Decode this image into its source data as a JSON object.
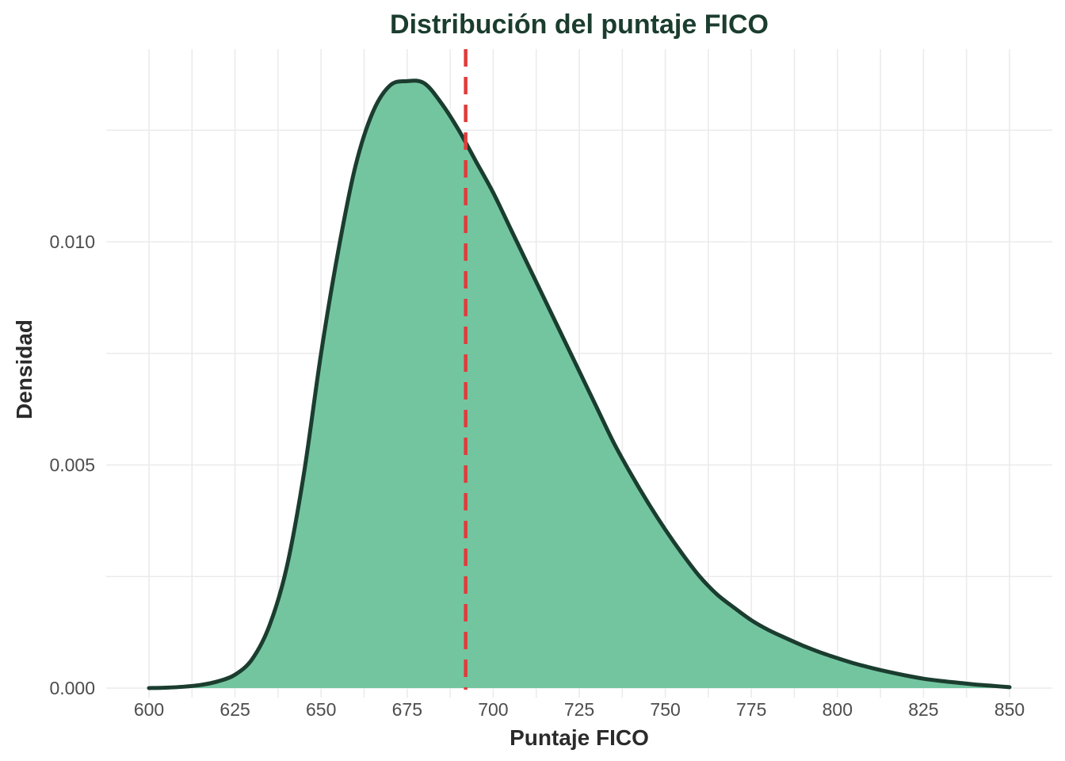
{
  "chart_data": {
    "type": "area",
    "title": "Distribución del puntaje FICO",
    "xlabel": "Puntaje FICO",
    "ylabel": "Densidad",
    "xlim": [
      600,
      850
    ],
    "ylim": [
      0,
      0.0137
    ],
    "x_ticks": [
      600,
      625,
      650,
      675,
      700,
      725,
      750,
      775,
      800,
      825,
      850
    ],
    "x_tick_labels": [
      "600",
      "625",
      "650",
      "675",
      "700",
      "725",
      "750",
      "775",
      "800",
      "825",
      "850"
    ],
    "y_ticks": [
      0,
      0.005,
      0.01
    ],
    "y_tick_labels": [
      "0.000",
      "0.005",
      "0.010"
    ],
    "grid": true,
    "series": [
      {
        "x": [
          600,
          605,
          610,
          615,
          620,
          625,
          630,
          635,
          640,
          645,
          650,
          655,
          660,
          665,
          670,
          675,
          680,
          685,
          690,
          695,
          700,
          705,
          710,
          715,
          720,
          725,
          730,
          735,
          740,
          745,
          750,
          755,
          760,
          765,
          770,
          775,
          780,
          785,
          790,
          795,
          800,
          805,
          810,
          815,
          820,
          825,
          830,
          835,
          840,
          845,
          850
        ],
        "y": [
          0.0,
          1e-05,
          3e-05,
          7e-05,
          0.00015,
          0.0003,
          0.00065,
          0.0014,
          0.0027,
          0.0048,
          0.0075,
          0.0098,
          0.0117,
          0.0129,
          0.0135,
          0.0136,
          0.01355,
          0.0131,
          0.0125,
          0.0118,
          0.0111,
          0.0103,
          0.0095,
          0.0087,
          0.0079,
          0.0071,
          0.0063,
          0.0055,
          0.0048,
          0.00415,
          0.00355,
          0.003,
          0.0025,
          0.0021,
          0.0018,
          0.00152,
          0.0013,
          0.00112,
          0.00095,
          0.0008,
          0.00067,
          0.00055,
          0.00045,
          0.00036,
          0.00028,
          0.00021,
          0.00016,
          0.00012,
          8e-05,
          5e-05,
          2e-05
        ]
      }
    ],
    "reference_lines": [
      {
        "x": 692,
        "style": "dashed"
      }
    ],
    "colors": {
      "area_fill": "#73c5a0",
      "curve_line": "#1b3d2f",
      "reference_line": "#e03c3c",
      "title": "#1b3d2f",
      "grid": "#ebebeb"
    }
  }
}
